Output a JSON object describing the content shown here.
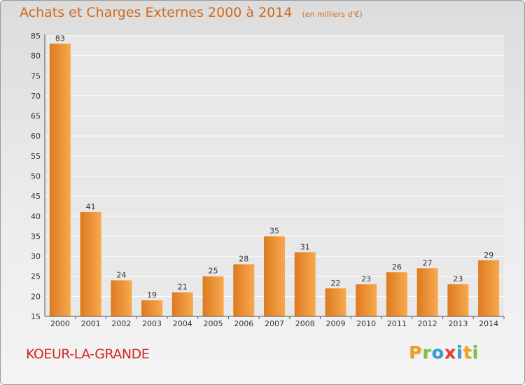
{
  "header": {
    "title": "Achats et Charges Externes 2000 à 2014",
    "unit": "(en milliers d'€)"
  },
  "footer": {
    "location": "KOEUR-LA-GRANDE",
    "logo": "Proxiti",
    "logo_colors": [
      "#f0a21c",
      "#7ac143",
      "#2a9fd6",
      "#e63b2e",
      "#2a9fd6",
      "#f0a21c",
      "#7ac143"
    ]
  },
  "colors": {
    "bar_light": "#f7a94e",
    "bar_dark": "#de7a20",
    "grid": "#ffffff",
    "title": "#d06a1c",
    "location": "#d0261c"
  },
  "chart_data": {
    "type": "bar",
    "title": "Achats et Charges Externes 2000 à 2014",
    "subtitle": "(en milliers d'€)",
    "xlabel": "",
    "ylabel": "",
    "categories": [
      "2000",
      "2001",
      "2002",
      "2003",
      "2004",
      "2005",
      "2006",
      "2007",
      "2008",
      "2009",
      "2010",
      "2011",
      "2012",
      "2013",
      "2014"
    ],
    "values": [
      83,
      41,
      24,
      19,
      21,
      25,
      28,
      35,
      31,
      22,
      23,
      26,
      27,
      23,
      29
    ],
    "ylim": [
      15,
      85
    ],
    "yticks": [
      15,
      20,
      25,
      30,
      35,
      40,
      45,
      50,
      55,
      60,
      65,
      70,
      75,
      80,
      85
    ],
    "grid": true,
    "data_labels": true
  }
}
